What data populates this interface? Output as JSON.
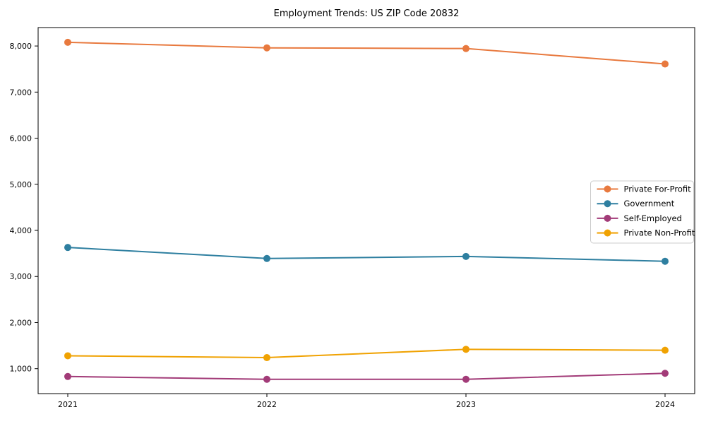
{
  "chart_data": {
    "type": "line",
    "title": "Employment Trends: US ZIP Code 20832",
    "xlabel": "",
    "ylabel": "",
    "categories": [
      "2021",
      "2022",
      "2023",
      "2024"
    ],
    "series": [
      {
        "name": "Private For-Profit",
        "color": "#E8793E",
        "values": [
          8080,
          7960,
          7945,
          7610
        ]
      },
      {
        "name": "Government",
        "color": "#2E7FA0",
        "values": [
          3630,
          3390,
          3435,
          3330
        ]
      },
      {
        "name": "Self-Employed",
        "color": "#A23B78",
        "values": [
          830,
          770,
          770,
          900
        ]
      },
      {
        "name": "Private Non-Profit",
        "color": "#F0A202",
        "values": [
          1280,
          1240,
          1420,
          1400
        ]
      }
    ],
    "y_ticks": [
      1000,
      2000,
      3000,
      4000,
      5000,
      6000,
      7000,
      8000
    ],
    "y_tick_labels": [
      "1,000",
      "2,000",
      "3,000",
      "4,000",
      "5,000",
      "6,000",
      "7,000",
      "8,000"
    ],
    "ylim": [
      459,
      8400
    ],
    "grid": false,
    "legend_position": "center right",
    "marker": "circle",
    "axis_color": "#000000",
    "legend_border_color": "#cccccc",
    "legend_background": "#ffffff"
  }
}
